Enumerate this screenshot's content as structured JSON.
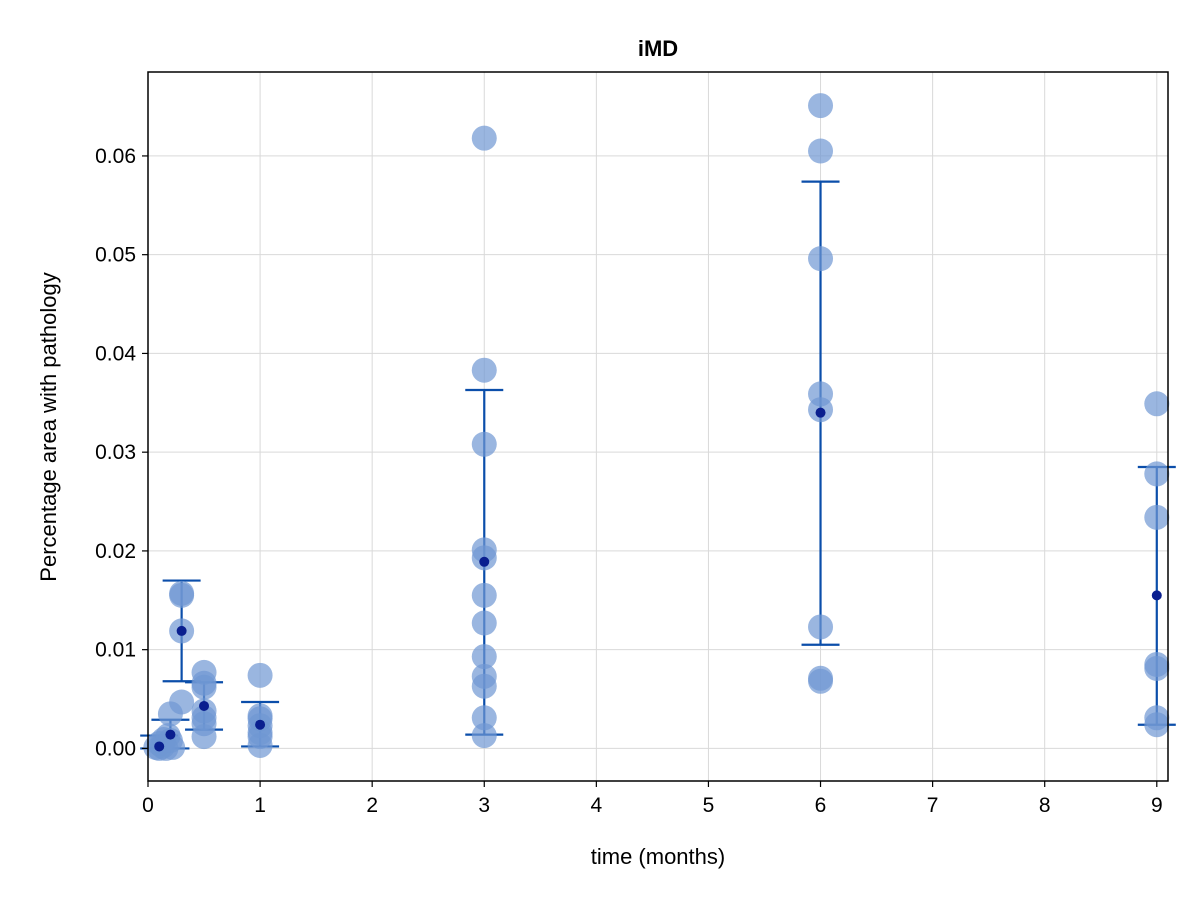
{
  "chart_data": {
    "type": "scatter",
    "title": "iMD",
    "xlabel": "time (months)",
    "ylabel": "Percentage area with pathology",
    "xlim": [
      0,
      9.1
    ],
    "ylim": [
      -0.0033,
      0.0685
    ],
    "x_ticks": [
      0,
      1,
      2,
      3,
      4,
      5,
      6,
      7,
      8,
      9
    ],
    "y_ticks": [
      0.0,
      0.01,
      0.02,
      0.03,
      0.04,
      0.05,
      0.06
    ],
    "x_tick_labels": [
      "0",
      "1",
      "2",
      "3",
      "4",
      "5",
      "6",
      "7",
      "8",
      "9"
    ],
    "y_tick_labels": [
      "0.00",
      "0.01",
      "0.02",
      "0.03",
      "0.04",
      "0.05",
      "0.06"
    ],
    "grid": true,
    "legend": "none",
    "colors": {
      "points": "#6f97d3",
      "points_opacity": 0.7,
      "mean": "#0a1f8f",
      "errorbar": "#0b4eaa"
    },
    "series": [
      {
        "role": "individual",
        "points": [
          {
            "x": 0.07,
            "y": 0.0001
          },
          {
            "x": 0.1,
            "y": 0.0
          },
          {
            "x": 0.13,
            "y": 0.0002
          },
          {
            "x": 0.16,
            "y": 0.0
          },
          {
            "x": 0.1,
            "y": 0.0005
          },
          {
            "x": 0.14,
            "y": 0.0009
          },
          {
            "x": 0.2,
            "y": 0.0035
          },
          {
            "x": 0.22,
            "y": 0.0001
          },
          {
            "x": 0.18,
            "y": 0.0013
          },
          {
            "x": 0.2,
            "y": 0.0008
          },
          {
            "x": 0.3,
            "y": 0.0157
          },
          {
            "x": 0.3,
            "y": 0.0155
          },
          {
            "x": 0.3,
            "y": 0.0119
          },
          {
            "x": 0.3,
            "y": 0.0047
          },
          {
            "x": 0.5,
            "y": 0.0077
          },
          {
            "x": 0.5,
            "y": 0.0066
          },
          {
            "x": 0.5,
            "y": 0.0062
          },
          {
            "x": 0.5,
            "y": 0.0038
          },
          {
            "x": 0.5,
            "y": 0.0031
          },
          {
            "x": 0.5,
            "y": 0.0025
          },
          {
            "x": 0.5,
            "y": 0.0012
          },
          {
            "x": 1.0,
            "y": 0.0074
          },
          {
            "x": 1.0,
            "y": 0.0033
          },
          {
            "x": 1.0,
            "y": 0.003
          },
          {
            "x": 1.0,
            "y": 0.0023
          },
          {
            "x": 1.0,
            "y": 0.0016
          },
          {
            "x": 1.0,
            "y": 0.0012
          },
          {
            "x": 1.0,
            "y": 0.0003
          },
          {
            "x": 3.0,
            "y": 0.0618
          },
          {
            "x": 3.0,
            "y": 0.0383
          },
          {
            "x": 3.0,
            "y": 0.0308
          },
          {
            "x": 3.0,
            "y": 0.0201
          },
          {
            "x": 3.0,
            "y": 0.0193
          },
          {
            "x": 3.0,
            "y": 0.0155
          },
          {
            "x": 3.0,
            "y": 0.0127
          },
          {
            "x": 3.0,
            "y": 0.0093
          },
          {
            "x": 3.0,
            "y": 0.0073
          },
          {
            "x": 3.0,
            "y": 0.0063
          },
          {
            "x": 3.0,
            "y": 0.0031
          },
          {
            "x": 3.0,
            "y": 0.0013
          },
          {
            "x": 6.0,
            "y": 0.0651
          },
          {
            "x": 6.0,
            "y": 0.0605
          },
          {
            "x": 6.0,
            "y": 0.0496
          },
          {
            "x": 6.0,
            "y": 0.0359
          },
          {
            "x": 6.0,
            "y": 0.0343
          },
          {
            "x": 6.0,
            "y": 0.0123
          },
          {
            "x": 6.0,
            "y": 0.0071
          },
          {
            "x": 6.0,
            "y": 0.0068
          },
          {
            "x": 9.0,
            "y": 0.0349
          },
          {
            "x": 9.0,
            "y": 0.0278
          },
          {
            "x": 9.0,
            "y": 0.0234
          },
          {
            "x": 9.0,
            "y": 0.0085
          },
          {
            "x": 9.0,
            "y": 0.0081
          },
          {
            "x": 9.0,
            "y": 0.0031
          },
          {
            "x": 9.0,
            "y": 0.0024
          }
        ]
      },
      {
        "role": "mean",
        "points": [
          {
            "x": 0.1,
            "y": 0.0002,
            "lo": 0.0,
            "hi": 0.0013
          },
          {
            "x": 0.2,
            "y": 0.0014,
            "lo": 0.0,
            "hi": 0.0029
          },
          {
            "x": 0.3,
            "y": 0.0119,
            "lo": 0.0068,
            "hi": 0.017
          },
          {
            "x": 0.5,
            "y": 0.0043,
            "lo": 0.0019,
            "hi": 0.0067
          },
          {
            "x": 1.0,
            "y": 0.0024,
            "lo": 0.0002,
            "hi": 0.0047
          },
          {
            "x": 3.0,
            "y": 0.0189,
            "lo": 0.0014,
            "hi": 0.0363
          },
          {
            "x": 6.0,
            "y": 0.034,
            "lo": 0.0105,
            "hi": 0.0574
          },
          {
            "x": 9.0,
            "y": 0.0155,
            "lo": 0.0024,
            "hi": 0.0285
          }
        ]
      }
    ]
  }
}
